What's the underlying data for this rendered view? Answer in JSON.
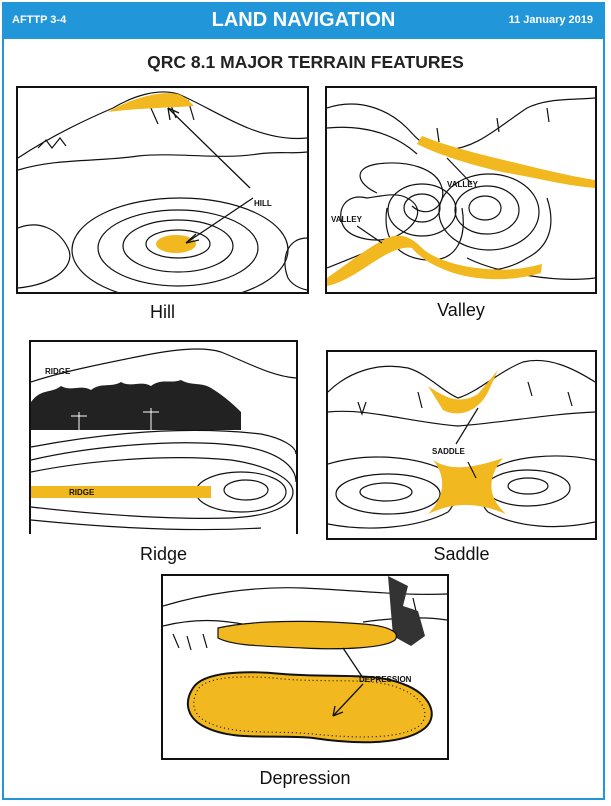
{
  "header": {
    "left": "AFTTP 3-4",
    "center": "LAND NAVIGATION",
    "right": "11 January 2019"
  },
  "title": "QRC 8.1 MAJOR TERRAIN FEATURES",
  "panels": {
    "hill": {
      "caption": "Hill",
      "label": "HILL"
    },
    "valley": {
      "caption": "Valley",
      "label_top": "VALLEY",
      "label_left": "VALLEY"
    },
    "ridge": {
      "caption": "Ridge",
      "label_top": "RIDGE",
      "label_band": "RIDGE"
    },
    "saddle": {
      "caption": "Saddle",
      "label": "SADDLE"
    },
    "depression": {
      "caption": "Depression",
      "label": "DEPRESSION"
    }
  },
  "colors": {
    "header_blue": "#2196d9",
    "highlight": "#f2b81f"
  }
}
